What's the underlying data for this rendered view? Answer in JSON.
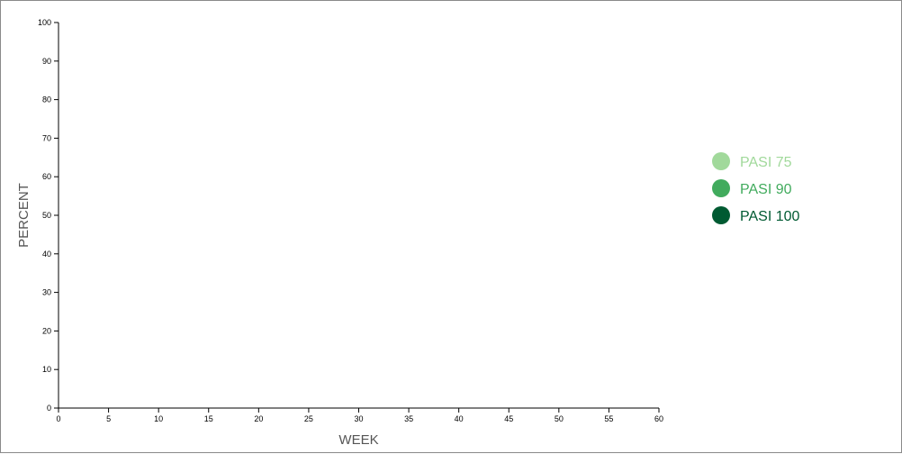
{
  "chart_data": {
    "type": "line",
    "title": "",
    "xlabel": "WEEK",
    "ylabel": "PERCENT",
    "xlim": [
      0,
      60
    ],
    "ylim": [
      0,
      100
    ],
    "xticks": [
      0,
      5,
      10,
      15,
      20,
      25,
      30,
      35,
      40,
      45,
      50,
      55,
      60
    ],
    "yticks": [
      0,
      10,
      20,
      30,
      40,
      50,
      60,
      70,
      80,
      90,
      100
    ],
    "grid": false,
    "legend_position": "right",
    "series": [
      {
        "name": "PASI 75",
        "color": "#a1d99b",
        "values": []
      },
      {
        "name": "PASI 90",
        "color": "#41ab5d",
        "values": []
      },
      {
        "name": "PASI 100",
        "color": "#005a32",
        "values": []
      }
    ]
  }
}
